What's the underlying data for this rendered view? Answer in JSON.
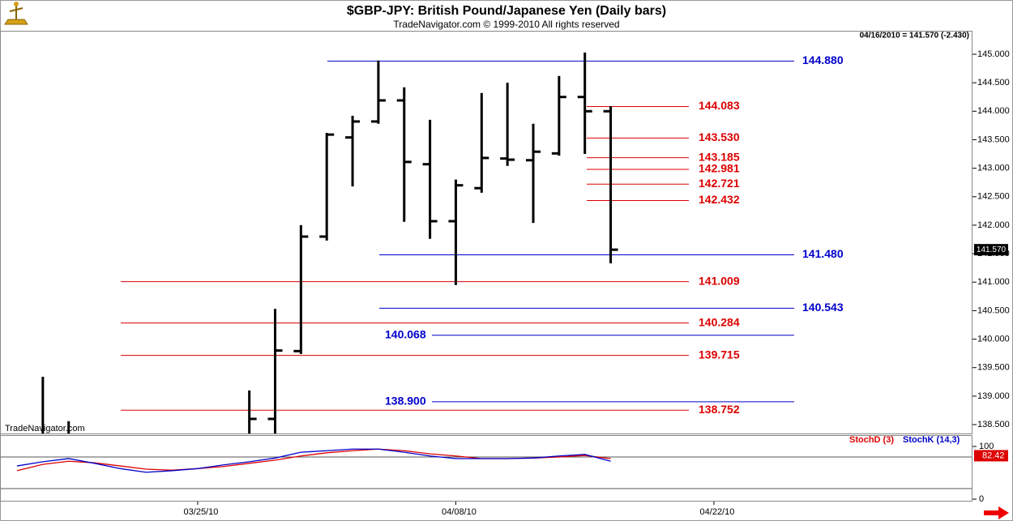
{
  "chart_data": [
    {
      "type": "ohlc",
      "title": "$GBP-JPY:  British Pound/Japanese Yen  (Daily bars)",
      "subtitle": "TradeNavigator.com © 1999-2010 All rights reserved",
      "quote": "04/16/2010 = 141.570 (-2.430)",
      "watermark": "TradeNavigator.com",
      "color": "#000000",
      "categories": [
        null,
        null,
        null,
        null,
        null,
        null,
        null,
        "03/25/10",
        null,
        null,
        null,
        null,
        null,
        null,
        null,
        null,
        null,
        "04/08/10",
        null,
        null,
        null,
        null,
        null,
        null,
        null,
        null,
        null,
        "04/22/10",
        null,
        null,
        null,
        null,
        null,
        null,
        null,
        null,
        null,
        null
      ],
      "open": [
        null,
        null,
        null,
        null,
        null,
        null,
        null,
        null,
        null,
        null,
        138.6,
        139.79,
        141.8,
        143.54,
        143.82,
        144.19,
        143.07,
        142.07,
        142.65,
        143.17,
        143.14,
        143.26,
        144.25,
        144.0,
        null,
        null,
        null,
        null,
        null,
        null,
        null,
        null,
        null,
        null,
        null,
        null,
        null,
        null
      ],
      "high": [
        null,
        139.34,
        138.56,
        null,
        null,
        null,
        null,
        null,
        null,
        139.1,
        140.53,
        142.0,
        143.62,
        143.92,
        144.89,
        144.42,
        143.85,
        142.8,
        144.32,
        144.5,
        143.78,
        144.62,
        145.03,
        144.09,
        null,
        null,
        null,
        null,
        null,
        null,
        null,
        null,
        null,
        null,
        null,
        null,
        null,
        null
      ],
      "low": [
        null,
        138.2,
        138.2,
        null,
        null,
        null,
        null,
        null,
        null,
        138.2,
        138.2,
        139.74,
        141.73,
        142.68,
        143.78,
        142.06,
        141.76,
        140.95,
        142.57,
        143.04,
        142.04,
        143.22,
        143.25,
        141.33,
        null,
        null,
        null,
        null,
        null,
        null,
        null,
        null,
        null,
        null,
        null,
        null,
        null,
        null
      ],
      "close": [
        null,
        null,
        null,
        null,
        null,
        null,
        null,
        null,
        null,
        138.6,
        139.8,
        141.8,
        143.59,
        143.82,
        144.19,
        143.11,
        142.07,
        142.7,
        143.18,
        143.15,
        143.29,
        144.25,
        144.0,
        141.57,
        null,
        null,
        null,
        null,
        null,
        null,
        null,
        null,
        null,
        null,
        null,
        null,
        null,
        null
      ],
      "ylim": [
        138.344,
        145.412
      ],
      "yticks": [
        {
          "value": 138.5,
          "label": "138.500"
        },
        {
          "value": 139,
          "label": "139.000"
        },
        {
          "value": 139.5,
          "label": "139.500"
        },
        {
          "value": 140,
          "label": "140.000"
        },
        {
          "value": 140.5,
          "label": "140.500"
        },
        {
          "value": 141,
          "label": "141.000"
        },
        {
          "value": 141.5,
          "label": "141.500"
        },
        {
          "value": 142,
          "label": "142.000"
        },
        {
          "value": 142.5,
          "label": "142.500"
        },
        {
          "value": 143,
          "label": "143.000"
        },
        {
          "value": 143.5,
          "label": "143.500"
        },
        {
          "value": 144,
          "label": "144.000"
        },
        {
          "value": 144.5,
          "label": "144.500"
        },
        {
          "value": 145,
          "label": "145.000"
        }
      ],
      "last_price": {
        "value": 141.57,
        "label": "141.570"
      },
      "levels": [
        {
          "value": 144.88,
          "label": "144.880",
          "color": "#0000cc"
        },
        {
          "value": 144.083,
          "label": "144.083",
          "color": "#dd0000"
        },
        {
          "value": 143.53,
          "label": "143.530",
          "color": "#dd0000"
        },
        {
          "value": 143.185,
          "label": "143.185",
          "color": "#dd0000"
        },
        {
          "value": 142.981,
          "label": "142.981",
          "color": "#dd0000"
        },
        {
          "value": 142.721,
          "label": "142.721",
          "color": "#dd0000"
        },
        {
          "value": 142.432,
          "label": "142.432",
          "color": "#dd0000"
        },
        {
          "value": 141.48,
          "label": "141.480",
          "color": "#0000cc"
        },
        {
          "value": 141.009,
          "label": "141.009",
          "color": "#dd0000"
        },
        {
          "value": 140.543,
          "label": "140.543",
          "color": "#0000cc"
        },
        {
          "value": 140.284,
          "label": "140.284",
          "color": "#dd0000"
        },
        {
          "value": 140.068,
          "label": "140.068",
          "color": "#0000cc"
        },
        {
          "value": 139.715,
          "label": "139.715",
          "color": "#dd0000"
        },
        {
          "value": 138.9,
          "label": "138.900",
          "color": "#0000cc"
        },
        {
          "value": 138.752,
          "label": "138.752",
          "color": "#dd0000"
        }
      ]
    },
    {
      "type": "line",
      "series": [
        {
          "name": "StochD (3)",
          "color": "#dd0000",
          "values": [
            54,
            66,
            72,
            69,
            63,
            57,
            55,
            58,
            62,
            68,
            74,
            82,
            88,
            92,
            95,
            92,
            86,
            82,
            77,
            77,
            78,
            80,
            83,
            77,
            null,
            null,
            null,
            null,
            null,
            null,
            null,
            null,
            null,
            null,
            null,
            null,
            null,
            null
          ]
        },
        {
          "name": "StochK (14,3)",
          "color": "#0000cc",
          "values": [
            63,
            71,
            77,
            68,
            58,
            51,
            54,
            58,
            65,
            71,
            78,
            89,
            92,
            95,
            95,
            89,
            82,
            77,
            77,
            77,
            78,
            82,
            85,
            72,
            null,
            null,
            null,
            null,
            null,
            null,
            null,
            null,
            null,
            null,
            null,
            null,
            null,
            null
          ]
        }
      ],
      "ylim": [
        -3,
        120
      ],
      "yticks": [
        0,
        100
      ],
      "hlines": [
        20,
        80
      ],
      "last_value": 82.42
    }
  ]
}
